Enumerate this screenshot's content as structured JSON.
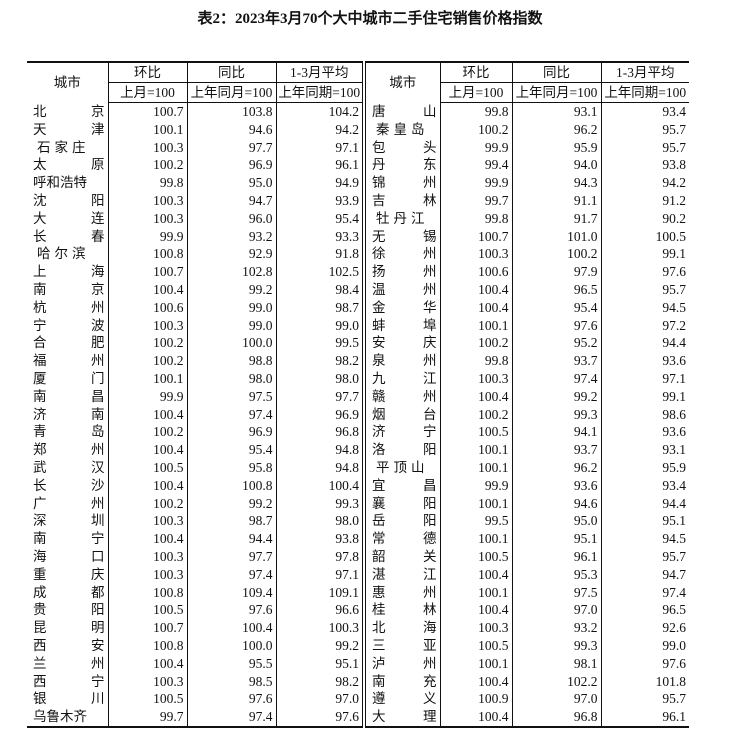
{
  "title": "表2：2023年3月70个大中城市二手住宅销售价格指数",
  "headers": {
    "city": "城市",
    "mom": "环比",
    "mom_base": "上月=100",
    "yoy": "同比",
    "yoy_base": "上年同月=100",
    "avg": "1-3月平均",
    "avg_base": "上年同期=100"
  },
  "left_rows": [
    {
      "city": "北京",
      "mom": "100.7",
      "yoy": "103.8",
      "avg": "104.2"
    },
    {
      "city": "天津",
      "mom": "100.1",
      "yoy": "94.6",
      "avg": "94.2"
    },
    {
      "city": "石家庄",
      "mom": "100.3",
      "yoy": "97.7",
      "avg": "97.1"
    },
    {
      "city": "太原",
      "mom": "100.2",
      "yoy": "96.9",
      "avg": "96.1"
    },
    {
      "city": "呼和浩特",
      "mom": "99.8",
      "yoy": "95.0",
      "avg": "94.9"
    },
    {
      "city": "沈阳",
      "mom": "100.3",
      "yoy": "94.7",
      "avg": "93.9"
    },
    {
      "city": "大连",
      "mom": "100.3",
      "yoy": "96.0",
      "avg": "95.4"
    },
    {
      "city": "长春",
      "mom": "99.9",
      "yoy": "93.2",
      "avg": "93.3"
    },
    {
      "city": "哈尔滨",
      "mom": "100.8",
      "yoy": "92.9",
      "avg": "91.8"
    },
    {
      "city": "上海",
      "mom": "100.7",
      "yoy": "102.8",
      "avg": "102.5"
    },
    {
      "city": "南京",
      "mom": "100.4",
      "yoy": "99.2",
      "avg": "98.4"
    },
    {
      "city": "杭州",
      "mom": "100.6",
      "yoy": "99.0",
      "avg": "98.7"
    },
    {
      "city": "宁波",
      "mom": "100.3",
      "yoy": "99.0",
      "avg": "99.0"
    },
    {
      "city": "合肥",
      "mom": "100.2",
      "yoy": "100.0",
      "avg": "99.5"
    },
    {
      "city": "福州",
      "mom": "100.2",
      "yoy": "98.8",
      "avg": "98.2"
    },
    {
      "city": "厦门",
      "mom": "100.1",
      "yoy": "98.0",
      "avg": "98.0"
    },
    {
      "city": "南昌",
      "mom": "99.9",
      "yoy": "97.5",
      "avg": "97.7"
    },
    {
      "city": "济南",
      "mom": "100.4",
      "yoy": "97.4",
      "avg": "96.9"
    },
    {
      "city": "青岛",
      "mom": "100.2",
      "yoy": "96.9",
      "avg": "96.8"
    },
    {
      "city": "郑州",
      "mom": "100.4",
      "yoy": "95.4",
      "avg": "94.8"
    },
    {
      "city": "武汉",
      "mom": "100.5",
      "yoy": "95.8",
      "avg": "94.8"
    },
    {
      "city": "长沙",
      "mom": "100.4",
      "yoy": "100.8",
      "avg": "100.4"
    },
    {
      "city": "广州",
      "mom": "100.2",
      "yoy": "99.2",
      "avg": "99.3"
    },
    {
      "city": "深圳",
      "mom": "100.3",
      "yoy": "98.7",
      "avg": "98.0"
    },
    {
      "city": "南宁",
      "mom": "100.4",
      "yoy": "94.4",
      "avg": "93.8"
    },
    {
      "city": "海口",
      "mom": "100.3",
      "yoy": "97.7",
      "avg": "97.8"
    },
    {
      "city": "重庆",
      "mom": "100.3",
      "yoy": "97.4",
      "avg": "97.1"
    },
    {
      "city": "成都",
      "mom": "100.8",
      "yoy": "109.4",
      "avg": "109.1"
    },
    {
      "city": "贵阳",
      "mom": "100.5",
      "yoy": "97.6",
      "avg": "96.6"
    },
    {
      "city": "昆明",
      "mom": "100.7",
      "yoy": "100.4",
      "avg": "100.3"
    },
    {
      "city": "西安",
      "mom": "100.8",
      "yoy": "100.0",
      "avg": "99.2"
    },
    {
      "city": "兰州",
      "mom": "100.4",
      "yoy": "95.5",
      "avg": "95.1"
    },
    {
      "city": "西宁",
      "mom": "100.3",
      "yoy": "98.5",
      "avg": "98.2"
    },
    {
      "city": "银川",
      "mom": "100.5",
      "yoy": "97.6",
      "avg": "97.0"
    },
    {
      "city": "乌鲁木齐",
      "mom": "99.7",
      "yoy": "97.4",
      "avg": "97.6"
    }
  ],
  "right_rows": [
    {
      "city": "唐山",
      "mom": "99.8",
      "yoy": "93.1",
      "avg": "93.4"
    },
    {
      "city": "秦皇岛",
      "mom": "100.2",
      "yoy": "96.2",
      "avg": "95.7"
    },
    {
      "city": "包头",
      "mom": "99.9",
      "yoy": "95.9",
      "avg": "95.7"
    },
    {
      "city": "丹东",
      "mom": "99.4",
      "yoy": "94.0",
      "avg": "93.8"
    },
    {
      "city": "锦州",
      "mom": "99.9",
      "yoy": "94.3",
      "avg": "94.2"
    },
    {
      "city": "吉林",
      "mom": "99.7",
      "yoy": "91.1",
      "avg": "91.2"
    },
    {
      "city": "牡丹江",
      "mom": "99.8",
      "yoy": "91.7",
      "avg": "90.2"
    },
    {
      "city": "无锡",
      "mom": "100.7",
      "yoy": "101.0",
      "avg": "100.5"
    },
    {
      "city": "徐州",
      "mom": "100.3",
      "yoy": "100.2",
      "avg": "99.1"
    },
    {
      "city": "扬州",
      "mom": "100.6",
      "yoy": "97.9",
      "avg": "97.6"
    },
    {
      "city": "温州",
      "mom": "100.4",
      "yoy": "96.5",
      "avg": "95.7"
    },
    {
      "city": "金华",
      "mom": "100.4",
      "yoy": "95.4",
      "avg": "94.5"
    },
    {
      "city": "蚌埠",
      "mom": "100.1",
      "yoy": "97.6",
      "avg": "97.2"
    },
    {
      "city": "安庆",
      "mom": "100.2",
      "yoy": "95.2",
      "avg": "94.4"
    },
    {
      "city": "泉州",
      "mom": "99.8",
      "yoy": "93.7",
      "avg": "93.6"
    },
    {
      "city": "九江",
      "mom": "100.3",
      "yoy": "97.4",
      "avg": "97.1"
    },
    {
      "city": "赣州",
      "mom": "100.4",
      "yoy": "99.2",
      "avg": "99.1"
    },
    {
      "city": "烟台",
      "mom": "100.2",
      "yoy": "99.3",
      "avg": "98.6"
    },
    {
      "city": "济宁",
      "mom": "100.5",
      "yoy": "94.1",
      "avg": "93.6"
    },
    {
      "city": "洛阳",
      "mom": "100.1",
      "yoy": "93.7",
      "avg": "93.1"
    },
    {
      "city": "平顶山",
      "mom": "100.1",
      "yoy": "96.2",
      "avg": "95.9"
    },
    {
      "city": "宜昌",
      "mom": "99.9",
      "yoy": "93.6",
      "avg": "93.4"
    },
    {
      "city": "襄阳",
      "mom": "100.1",
      "yoy": "94.6",
      "avg": "94.4"
    },
    {
      "city": "岳阳",
      "mom": "99.5",
      "yoy": "95.0",
      "avg": "95.1"
    },
    {
      "city": "常德",
      "mom": "100.1",
      "yoy": "95.1",
      "avg": "94.5"
    },
    {
      "city": "韶关",
      "mom": "100.5",
      "yoy": "96.1",
      "avg": "95.7"
    },
    {
      "city": "湛江",
      "mom": "100.4",
      "yoy": "95.3",
      "avg": "94.7"
    },
    {
      "city": "惠州",
      "mom": "100.1",
      "yoy": "97.5",
      "avg": "97.4"
    },
    {
      "city": "桂林",
      "mom": "100.4",
      "yoy": "97.0",
      "avg": "96.5"
    },
    {
      "city": "北海",
      "mom": "100.3",
      "yoy": "93.2",
      "avg": "92.6"
    },
    {
      "city": "三亚",
      "mom": "100.5",
      "yoy": "99.3",
      "avg": "99.0"
    },
    {
      "city": "泸州",
      "mom": "100.1",
      "yoy": "98.1",
      "avg": "97.6"
    },
    {
      "city": "南充",
      "mom": "100.4",
      "yoy": "102.2",
      "avg": "101.8"
    },
    {
      "city": "遵义",
      "mom": "100.9",
      "yoy": "97.0",
      "avg": "95.7"
    },
    {
      "city": "大理",
      "mom": "100.4",
      "yoy": "96.8",
      "avg": "96.1"
    }
  ]
}
